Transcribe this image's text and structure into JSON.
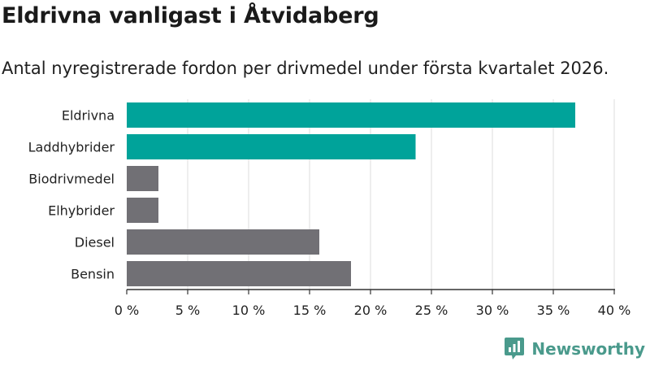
{
  "title": "Eldrivna vanligast i Åtvidaberg",
  "subtitle": "Antal nyregistrerade fordon per drivmedel under första kvartalet 2026.",
  "brand": {
    "name": "Newsworthy"
  },
  "colors": {
    "highlight": "#00a39a",
    "other": "#717075",
    "grid": "#dcdcdc",
    "axis": "#333333"
  },
  "chart_data": {
    "type": "bar",
    "orientation": "horizontal",
    "categories": [
      "Eldrivna",
      "Laddhybrider",
      "Biodrivmedel",
      "Elhybrider",
      "Diesel",
      "Bensin"
    ],
    "values": [
      36.8,
      23.7,
      2.6,
      2.6,
      15.8,
      18.4
    ],
    "highlighted": [
      true,
      true,
      false,
      false,
      false,
      false
    ],
    "xlim": [
      0,
      40
    ],
    "xticks": [
      0,
      5,
      10,
      15,
      20,
      25,
      30,
      35,
      40
    ],
    "tick_labels": [
      "0 %",
      "5 %",
      "10 %",
      "15 %",
      "20 %",
      "25 %",
      "30 %",
      "35 %",
      "40 %"
    ],
    "xlabel": "",
    "ylabel": "",
    "grid": true
  }
}
